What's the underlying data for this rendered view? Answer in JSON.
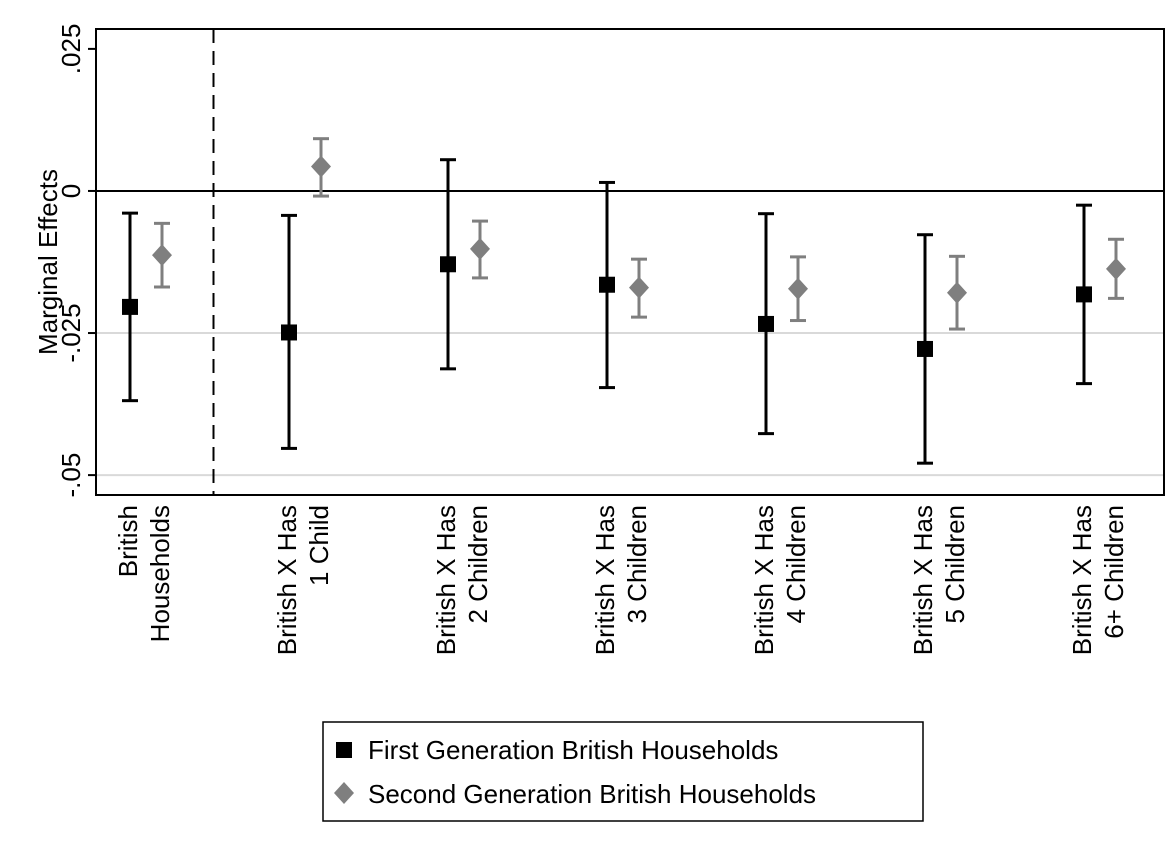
{
  "chart_data": {
    "type": "scatter",
    "title": "",
    "xlabel": "",
    "ylabel": "Marginal Effects",
    "ylim": [
      -0.0535,
      0.0285
    ],
    "yticks": [
      0.025,
      0,
      -0.025,
      -0.05
    ],
    "ytick_labels": [
      ".025",
      "0",
      "-.025",
      "-.05"
    ],
    "zero_line": true,
    "reference_lines": [
      -0.025,
      -0.05
    ],
    "separator_after_category": 0,
    "legend_position": "bottom",
    "categories": [
      {
        "lines": [
          "British",
          "Households"
        ]
      },
      {
        "lines": [
          "British X Has",
          "1 Child"
        ]
      },
      {
        "lines": [
          "British X Has",
          "2 Children"
        ]
      },
      {
        "lines": [
          "British X Has",
          "3 Children"
        ]
      },
      {
        "lines": [
          "British X Has",
          "4 Children"
        ]
      },
      {
        "lines": [
          "British X Has",
          "5 Children"
        ]
      },
      {
        "lines": [
          "British X Has",
          "6+ Children"
        ]
      }
    ],
    "series": [
      {
        "name": "First Generation British Households",
        "marker": "square",
        "color": "#000000",
        "values": [
          -0.0204,
          -0.0249,
          -0.0129,
          -0.0165,
          -0.0234,
          -0.0278,
          -0.0182
        ],
        "ci_low": [
          -0.0369,
          -0.0453,
          -0.0313,
          -0.0346,
          -0.0427,
          -0.0479,
          -0.0339
        ],
        "ci_high": [
          -0.0039,
          -0.0043,
          0.0055,
          0.0015,
          -0.004,
          -0.0077,
          -0.0025
        ]
      },
      {
        "name": "Second Generation British Households",
        "marker": "diamond",
        "color": "#7f7f7f",
        "values": [
          -0.0113,
          0.0043,
          -0.0102,
          -0.017,
          -0.0172,
          -0.0179,
          -0.0137
        ],
        "ci_low": [
          -0.0169,
          -0.0009,
          -0.0153,
          -0.0222,
          -0.0228,
          -0.0243,
          -0.0189
        ],
        "ci_high": [
          -0.0057,
          0.0092,
          -0.0053,
          -0.012,
          -0.0116,
          -0.0115,
          -0.0085
        ]
      }
    ]
  }
}
